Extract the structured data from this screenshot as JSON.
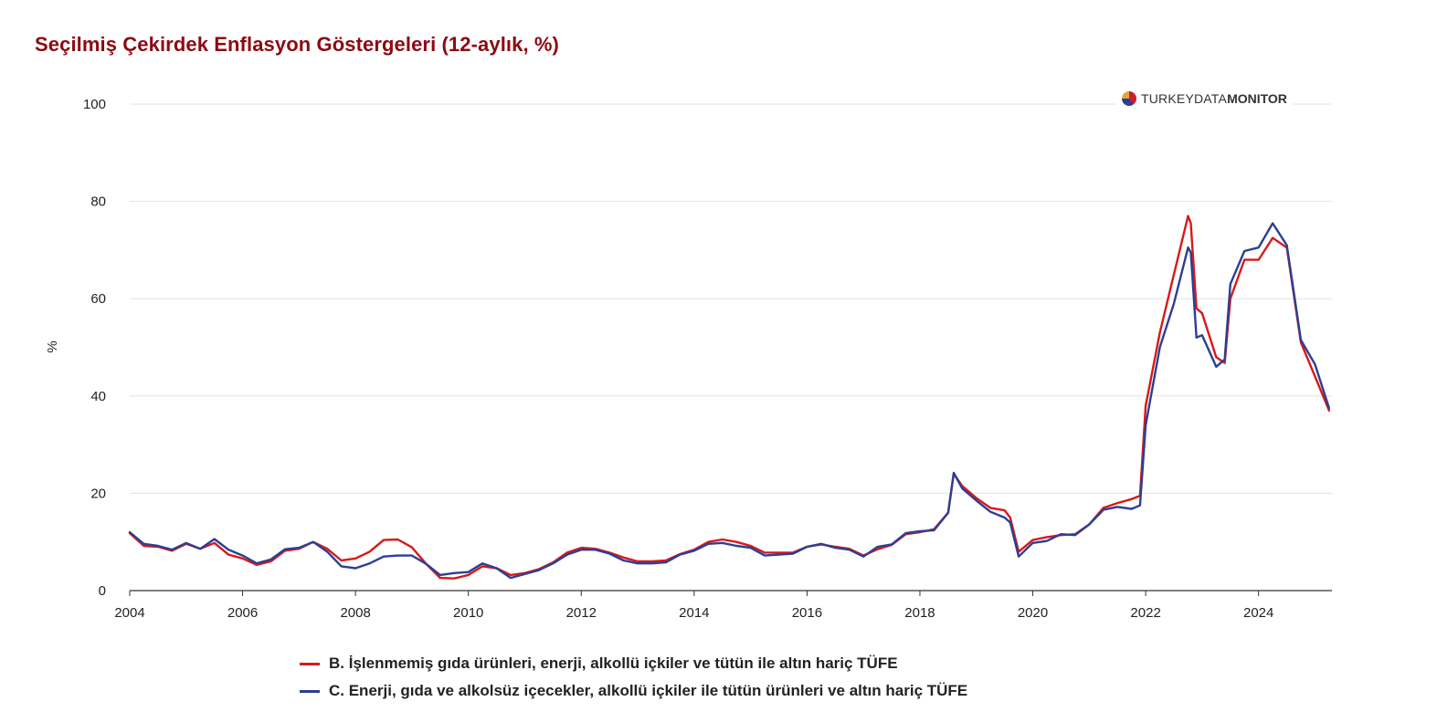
{
  "title": "Seçilmiş Çekirdek Enflasyon Göstergeleri (12-aylık, %)",
  "logo": {
    "part1": "TURKEY",
    "part2": "DATA",
    "part3": "MONITOR"
  },
  "chart_data": {
    "type": "line",
    "title": "Seçilmiş Çekirdek Enflasyon Göstergeleri (12-aylık, %)",
    "ylabel": "%",
    "xlabel": "",
    "ylim": [
      0,
      100
    ],
    "xlim": [
      2004,
      2025.3
    ],
    "yticks": [
      0,
      20,
      40,
      60,
      80,
      100
    ],
    "xticks": [
      2004,
      2006,
      2008,
      2010,
      2012,
      2014,
      2016,
      2018,
      2020,
      2022,
      2024
    ],
    "grid": true,
    "legend_position": "bottom",
    "series": [
      {
        "name": "B. İşlenmemiş gıda ürünleri, enerji, alkollü içkiler ve tütün ile altın hariç TÜFE",
        "color": "#d7191c",
        "points": [
          [
            2004.0,
            11.8
          ],
          [
            2004.25,
            9.2
          ],
          [
            2004.5,
            9.0
          ],
          [
            2004.75,
            8.2
          ],
          [
            2005.0,
            9.6
          ],
          [
            2005.25,
            8.6
          ],
          [
            2005.5,
            9.8
          ],
          [
            2005.75,
            7.4
          ],
          [
            2006.0,
            6.6
          ],
          [
            2006.25,
            5.3
          ],
          [
            2006.5,
            6.0
          ],
          [
            2006.75,
            8.2
          ],
          [
            2007.0,
            8.6
          ],
          [
            2007.25,
            10.0
          ],
          [
            2007.5,
            8.6
          ],
          [
            2007.75,
            6.2
          ],
          [
            2008.0,
            6.6
          ],
          [
            2008.25,
            8.0
          ],
          [
            2008.5,
            10.4
          ],
          [
            2008.75,
            10.5
          ],
          [
            2009.0,
            8.9
          ],
          [
            2009.25,
            5.5
          ],
          [
            2009.5,
            2.6
          ],
          [
            2009.75,
            2.5
          ],
          [
            2010.0,
            3.2
          ],
          [
            2010.25,
            5.0
          ],
          [
            2010.5,
            4.6
          ],
          [
            2010.75,
            3.2
          ],
          [
            2011.0,
            3.6
          ],
          [
            2011.25,
            4.4
          ],
          [
            2011.5,
            5.8
          ],
          [
            2011.75,
            7.8
          ],
          [
            2012.0,
            8.8
          ],
          [
            2012.25,
            8.6
          ],
          [
            2012.5,
            7.8
          ],
          [
            2012.75,
            6.8
          ],
          [
            2013.0,
            6.0
          ],
          [
            2013.25,
            6.0
          ],
          [
            2013.5,
            6.2
          ],
          [
            2013.75,
            7.5
          ],
          [
            2014.0,
            8.4
          ],
          [
            2014.25,
            10.0
          ],
          [
            2014.5,
            10.5
          ],
          [
            2014.75,
            10.0
          ],
          [
            2015.0,
            9.2
          ],
          [
            2015.25,
            7.8
          ],
          [
            2015.5,
            7.8
          ],
          [
            2015.75,
            7.8
          ],
          [
            2016.0,
            9.0
          ],
          [
            2016.25,
            9.5
          ],
          [
            2016.5,
            9.0
          ],
          [
            2016.75,
            8.6
          ],
          [
            2017.0,
            7.2
          ],
          [
            2017.25,
            8.5
          ],
          [
            2017.5,
            9.4
          ],
          [
            2017.75,
            11.6
          ],
          [
            2018.0,
            12.0
          ],
          [
            2018.25,
            12.6
          ],
          [
            2018.5,
            16.0
          ],
          [
            2018.6,
            24.0
          ],
          [
            2018.75,
            21.5
          ],
          [
            2019.0,
            19.0
          ],
          [
            2019.25,
            17.0
          ],
          [
            2019.5,
            16.5
          ],
          [
            2019.6,
            15.0
          ],
          [
            2019.75,
            8.0
          ],
          [
            2020.0,
            10.4
          ],
          [
            2020.25,
            11.0
          ],
          [
            2020.5,
            11.4
          ],
          [
            2020.75,
            11.6
          ],
          [
            2021.0,
            13.6
          ],
          [
            2021.25,
            17.0
          ],
          [
            2021.5,
            18.0
          ],
          [
            2021.75,
            18.8
          ],
          [
            2021.9,
            19.5
          ],
          [
            2022.0,
            38.0
          ],
          [
            2022.25,
            53.0
          ],
          [
            2022.5,
            65.0
          ],
          [
            2022.75,
            77.0
          ],
          [
            2022.8,
            75.5
          ],
          [
            2022.9,
            58.0
          ],
          [
            2023.0,
            57.0
          ],
          [
            2023.25,
            48.0
          ],
          [
            2023.4,
            46.8
          ],
          [
            2023.5,
            60.0
          ],
          [
            2023.75,
            68.0
          ],
          [
            2024.0,
            68.0
          ],
          [
            2024.25,
            72.5
          ],
          [
            2024.5,
            70.5
          ],
          [
            2024.75,
            51.0
          ],
          [
            2025.0,
            44.0
          ],
          [
            2025.25,
            37.0
          ]
        ]
      },
      {
        "name": "C. Enerji, gıda ve alkolsüz içecekler, alkollü içkiler ile tütün ürünleri ve altın hariç TÜFE",
        "color": "#2b3f93",
        "points": [
          [
            2004.0,
            12.0
          ],
          [
            2004.25,
            9.6
          ],
          [
            2004.5,
            9.2
          ],
          [
            2004.75,
            8.4
          ],
          [
            2005.0,
            9.8
          ],
          [
            2005.25,
            8.6
          ],
          [
            2005.5,
            10.6
          ],
          [
            2005.75,
            8.4
          ],
          [
            2006.0,
            7.2
          ],
          [
            2006.25,
            5.6
          ],
          [
            2006.5,
            6.4
          ],
          [
            2006.75,
            8.5
          ],
          [
            2007.0,
            8.8
          ],
          [
            2007.25,
            10.0
          ],
          [
            2007.5,
            8.0
          ],
          [
            2007.75,
            5.0
          ],
          [
            2008.0,
            4.6
          ],
          [
            2008.25,
            5.6
          ],
          [
            2008.5,
            7.0
          ],
          [
            2008.75,
            7.2
          ],
          [
            2009.0,
            7.2
          ],
          [
            2009.25,
            5.5
          ],
          [
            2009.5,
            3.2
          ],
          [
            2009.75,
            3.6
          ],
          [
            2010.0,
            3.8
          ],
          [
            2010.25,
            5.6
          ],
          [
            2010.5,
            4.6
          ],
          [
            2010.75,
            2.6
          ],
          [
            2011.0,
            3.4
          ],
          [
            2011.25,
            4.2
          ],
          [
            2011.5,
            5.6
          ],
          [
            2011.75,
            7.4
          ],
          [
            2012.0,
            8.4
          ],
          [
            2012.25,
            8.4
          ],
          [
            2012.5,
            7.6
          ],
          [
            2012.75,
            6.2
          ],
          [
            2013.0,
            5.6
          ],
          [
            2013.25,
            5.6
          ],
          [
            2013.5,
            5.8
          ],
          [
            2013.75,
            7.4
          ],
          [
            2014.0,
            8.2
          ],
          [
            2014.25,
            9.6
          ],
          [
            2014.5,
            9.8
          ],
          [
            2014.75,
            9.2
          ],
          [
            2015.0,
            8.8
          ],
          [
            2015.25,
            7.2
          ],
          [
            2015.5,
            7.4
          ],
          [
            2015.75,
            7.6
          ],
          [
            2016.0,
            9.0
          ],
          [
            2016.25,
            9.6
          ],
          [
            2016.5,
            8.8
          ],
          [
            2016.75,
            8.4
          ],
          [
            2017.0,
            7.0
          ],
          [
            2017.25,
            9.0
          ],
          [
            2017.5,
            9.5
          ],
          [
            2017.75,
            11.8
          ],
          [
            2018.0,
            12.2
          ],
          [
            2018.25,
            12.4
          ],
          [
            2018.5,
            16.0
          ],
          [
            2018.6,
            24.2
          ],
          [
            2018.75,
            21.0
          ],
          [
            2019.0,
            18.5
          ],
          [
            2019.25,
            16.2
          ],
          [
            2019.5,
            15.0
          ],
          [
            2019.6,
            14.0
          ],
          [
            2019.75,
            7.0
          ],
          [
            2020.0,
            9.8
          ],
          [
            2020.25,
            10.2
          ],
          [
            2020.5,
            11.6
          ],
          [
            2020.75,
            11.4
          ],
          [
            2021.0,
            13.6
          ],
          [
            2021.25,
            16.6
          ],
          [
            2021.5,
            17.2
          ],
          [
            2021.75,
            16.8
          ],
          [
            2021.9,
            17.5
          ],
          [
            2022.0,
            34.0
          ],
          [
            2022.25,
            50.0
          ],
          [
            2022.5,
            59.0
          ],
          [
            2022.75,
            70.5
          ],
          [
            2022.8,
            69.5
          ],
          [
            2022.9,
            52.0
          ],
          [
            2023.0,
            52.5
          ],
          [
            2023.25,
            46.0
          ],
          [
            2023.4,
            47.5
          ],
          [
            2023.5,
            63.0
          ],
          [
            2023.75,
            69.8
          ],
          [
            2024.0,
            70.5
          ],
          [
            2024.25,
            75.5
          ],
          [
            2024.5,
            71.0
          ],
          [
            2024.75,
            51.5
          ],
          [
            2025.0,
            46.5
          ],
          [
            2025.25,
            37.5
          ]
        ]
      }
    ]
  }
}
